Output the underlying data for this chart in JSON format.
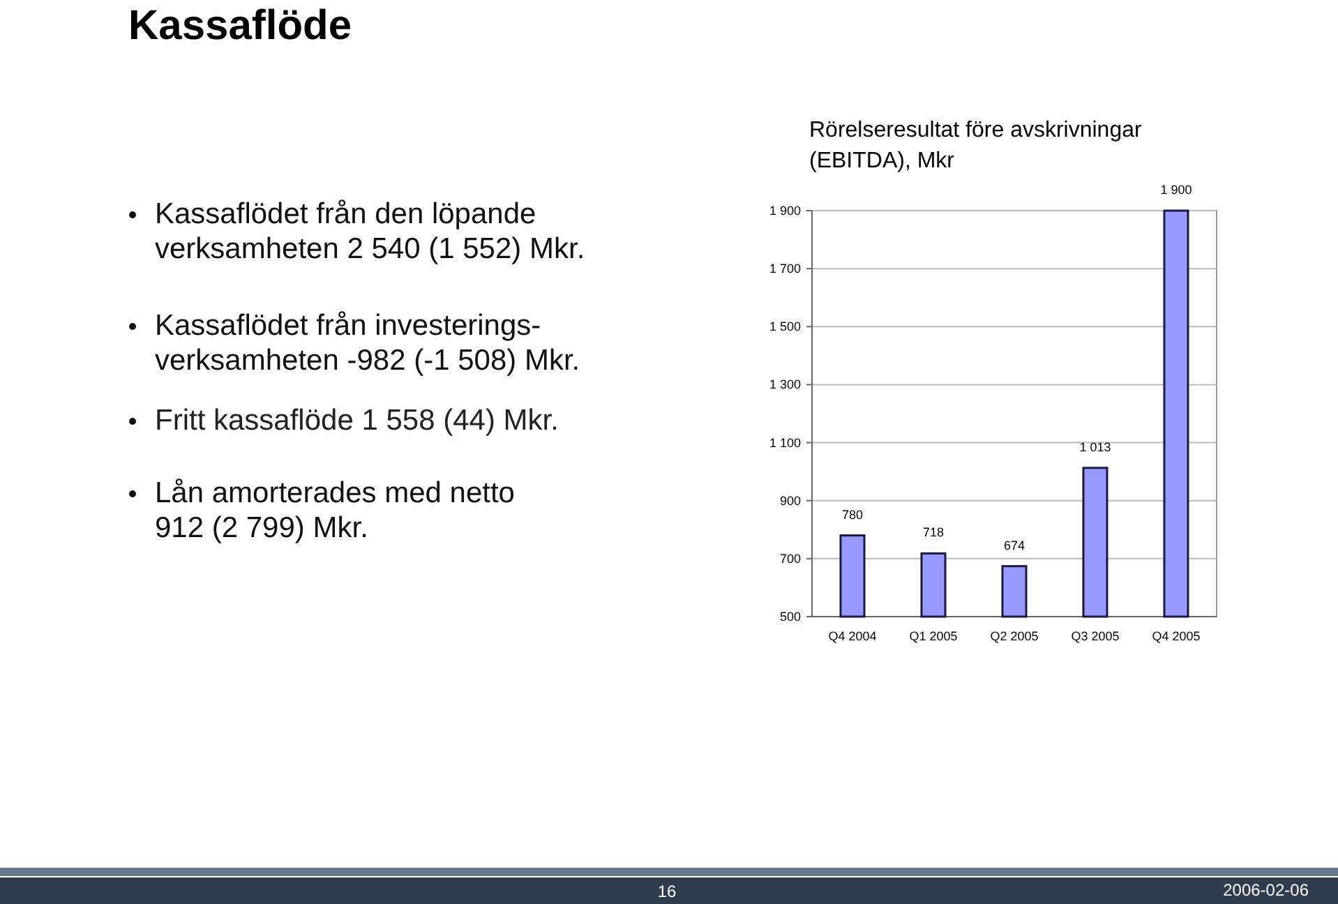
{
  "chart_data": {
    "type": "bar",
    "title": "Rörelseresultat före avskrivningar\n(EBITDA), Mkr",
    "categories": [
      "Q4 2004",
      "Q1 2005",
      "Q2 2005",
      "Q3 2005",
      "Q4 2005"
    ],
    "values": [
      780,
      718,
      674,
      1013,
      1900
    ],
    "value_labels": [
      "780",
      "718",
      "674",
      "1 013",
      "1 900"
    ],
    "color": "#9999ff",
    "ylim": [
      500,
      1900
    ],
    "yticks": [
      {
        "value": 500,
        "label": "500"
      },
      {
        "value": 700,
        "label": "700"
      },
      {
        "value": 900,
        "label": "900"
      },
      {
        "value": 1100,
        "label": "1 100"
      },
      {
        "value": 1300,
        "label": "1 300"
      },
      {
        "value": 1500,
        "label": "1 500"
      },
      {
        "value": 1700,
        "label": "1 700"
      },
      {
        "value": 1900,
        "label": "1 900"
      }
    ],
    "grid": "y",
    "annotations": [
      "Kassaflöde",
      "Kassaflödet från den löpande\nverksamheten 2 540 (1 552) Mkr.",
      "Kassaflödet från investerings-\nverksamheten -982 (-1 508) Mkr.",
      "Fritt kassaflöde 1 558 (44) Mkr.",
      "Lån amorterades med netto\n912 (2 799) Mkr.",
      "16",
      "2006-02-06"
    ]
  }
}
